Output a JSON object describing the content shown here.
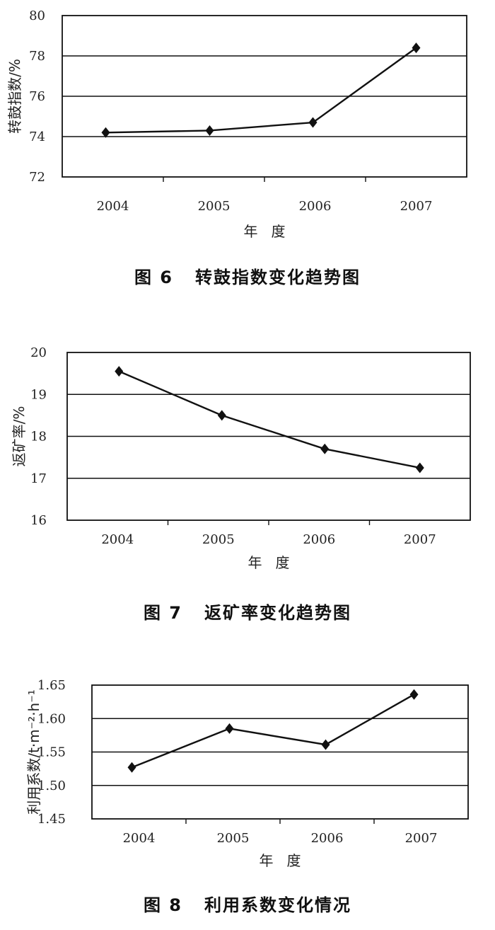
{
  "chart_data": [
    {
      "type": "line",
      "categories": [
        "2004",
        "2005",
        "2006",
        "2007"
      ],
      "series": [
        {
          "values": [
            74.2,
            74.3,
            74.7,
            78.4
          ]
        }
      ],
      "title": "图 6   转鼓指数变化趋势图",
      "xlabel": "年   度",
      "ylabel": "转鼓指数/%",
      "ylim": [
        72,
        80
      ],
      "yticks": [
        "72",
        "74",
        "76",
        "78",
        "80"
      ],
      "grid": true,
      "marker": "diamond",
      "colors": {
        "line": "#111111",
        "grid": "#111111"
      }
    },
    {
      "type": "line",
      "categories": [
        "2004",
        "2005",
        "2006",
        "2007"
      ],
      "series": [
        {
          "values": [
            19.55,
            18.5,
            17.7,
            17.25
          ]
        }
      ],
      "title": "图 7   返矿率变化趋势图",
      "xlabel": "年   度",
      "ylabel": "返矿率/%",
      "ylim": [
        16,
        20
      ],
      "yticks": [
        "16",
        "17",
        "18",
        "19",
        "20"
      ],
      "grid": true,
      "marker": "diamond",
      "colors": {
        "line": "#111111",
        "grid": "#111111"
      }
    },
    {
      "type": "line",
      "categories": [
        "2004",
        "2005",
        "2006",
        "2007"
      ],
      "series": [
        {
          "values": [
            1.527,
            1.585,
            1.561,
            1.636
          ]
        }
      ],
      "title": "图 8   利用系数变化情况",
      "xlabel": "年   度",
      "ylabel": "利用系数/t·m⁻²·h⁻¹",
      "ylim": [
        1.45,
        1.65
      ],
      "yticks": [
        "1.45",
        "1.50",
        "1.55",
        "1.60",
        "1.65"
      ],
      "grid": true,
      "marker": "diamond",
      "colors": {
        "line": "#111111",
        "grid": "#111111"
      }
    }
  ]
}
